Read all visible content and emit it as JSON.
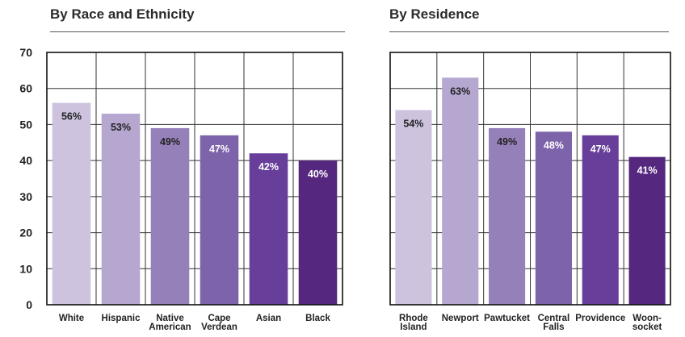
{
  "chart_data": [
    {
      "type": "bar",
      "title": "By Race and Ethnicity",
      "categories": [
        [
          "White"
        ],
        [
          "Hispanic"
        ],
        [
          "Native",
          "American"
        ],
        [
          "Cape",
          "Verdean"
        ],
        [
          "Asian"
        ],
        [
          "Black"
        ]
      ],
      "values": [
        56,
        53,
        49,
        47,
        42,
        40
      ],
      "labels": [
        "56%",
        "53%",
        "49%",
        "47%",
        "42%",
        "40%"
      ],
      "colors": [
        "#cdc3df",
        "#b6a7d0",
        "#9680b9",
        "#7d63aa",
        "#673f9a",
        "#55277f"
      ],
      "label_colors": [
        "#222222",
        "#222222",
        "#222222",
        "#ffffff",
        "#ffffff",
        "#ffffff"
      ],
      "ylim": [
        0,
        70
      ],
      "yticks": [
        0,
        10,
        20,
        30,
        40,
        50,
        60,
        70
      ],
      "grid": true
    },
    {
      "type": "bar",
      "title": "By Residence",
      "categories": [
        [
          "Rhode",
          "Island"
        ],
        [
          "Newport"
        ],
        [
          "Pawtucket"
        ],
        [
          "Central",
          "Falls"
        ],
        [
          "Providence"
        ],
        [
          "Woon-",
          "socket"
        ]
      ],
      "values": [
        54,
        63,
        49,
        48,
        47,
        41
      ],
      "labels": [
        "54%",
        "63%",
        "49%",
        "48%",
        "47%",
        "41%"
      ],
      "colors": [
        "#cdc3df",
        "#b6a7d0",
        "#9680b9",
        "#7d63aa",
        "#673f9a",
        "#55277f"
      ],
      "label_colors": [
        "#222222",
        "#222222",
        "#222222",
        "#ffffff",
        "#ffffff",
        "#ffffff"
      ],
      "ylim": [
        0,
        70
      ],
      "grid": true
    }
  ]
}
